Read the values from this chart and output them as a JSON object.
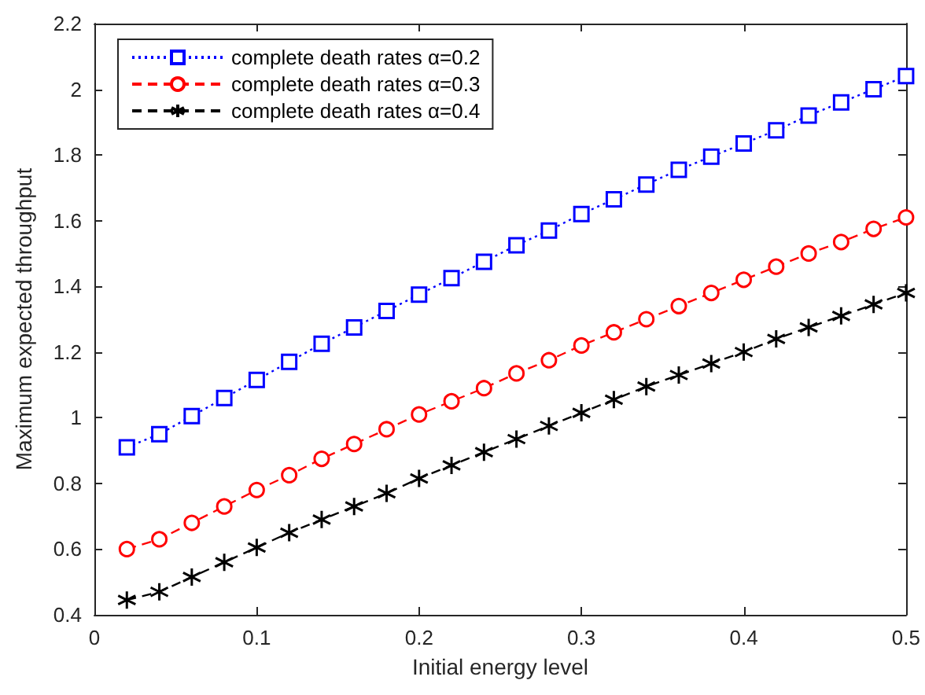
{
  "chart_data": {
    "type": "line",
    "xlabel": "Initial energy level",
    "ylabel": "Maximum expected throughput",
    "x": [
      0.02,
      0.04,
      0.06,
      0.08,
      0.1,
      0.12,
      0.14,
      0.16,
      0.18,
      0.2,
      0.22,
      0.24,
      0.26,
      0.28,
      0.3,
      0.32,
      0.34,
      0.36,
      0.38,
      0.4,
      0.42,
      0.44,
      0.46,
      0.48,
      0.5
    ],
    "series": [
      {
        "name": "complete death rates α=0.2",
        "color": "#0000ff",
        "marker": "square",
        "line_style": "dotted",
        "values": [
          0.91,
          0.95,
          1.005,
          1.06,
          1.115,
          1.17,
          1.225,
          1.275,
          1.325,
          1.375,
          1.425,
          1.475,
          1.525,
          1.57,
          1.62,
          1.665,
          1.71,
          1.755,
          1.795,
          1.835,
          1.875,
          1.92,
          1.96,
          2.0,
          2.04
        ]
      },
      {
        "name": "complete death rates α=0.3",
        "color": "#ff0000",
        "marker": "circle",
        "line_style": "dashed",
        "values": [
          0.6,
          0.63,
          0.68,
          0.73,
          0.78,
          0.825,
          0.875,
          0.92,
          0.965,
          1.01,
          1.05,
          1.09,
          1.135,
          1.175,
          1.22,
          1.26,
          1.3,
          1.34,
          1.38,
          1.42,
          1.46,
          1.5,
          1.535,
          1.575,
          1.61
        ]
      },
      {
        "name": "complete death rates α=0.4",
        "color": "#000000",
        "marker": "cross",
        "line_style": "dashed",
        "values": [
          0.445,
          0.47,
          0.515,
          0.56,
          0.605,
          0.65,
          0.69,
          0.73,
          0.77,
          0.815,
          0.855,
          0.895,
          0.935,
          0.975,
          1.015,
          1.055,
          1.095,
          1.13,
          1.165,
          1.2,
          1.24,
          1.275,
          1.31,
          1.345,
          1.38
        ]
      }
    ],
    "xlim": [
      0,
      0.5
    ],
    "xticks": [
      0,
      0.1,
      0.2,
      0.3,
      0.4,
      0.5
    ],
    "ylim": [
      0.4,
      2.2
    ],
    "yticks": [
      0.4,
      0.6,
      0.8,
      1,
      1.2,
      1.4,
      1.6,
      1.8,
      2,
      2.2
    ],
    "grid": false,
    "legend": "top left"
  }
}
